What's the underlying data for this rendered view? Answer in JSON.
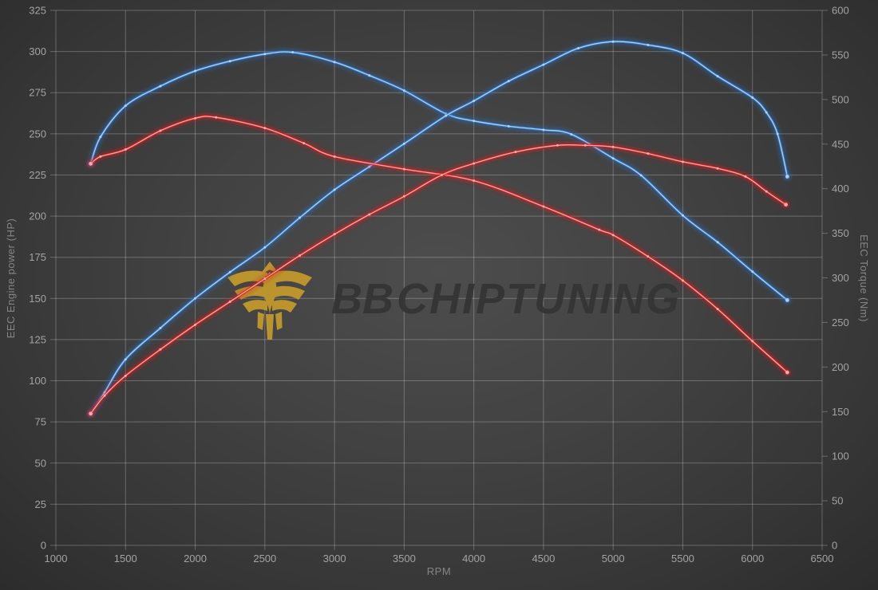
{
  "watermark": {
    "brand_bold": "BB",
    "brand_rest": "CHIPTUNING",
    "emblem": "bb-chiptuning-phoenix-emblem",
    "emblem_color": "#c69b2b",
    "text_color": "#343434"
  },
  "colors": {
    "background_center": "#4d4d4d",
    "background_edge": "#2c2c2c",
    "grid": "rgba(255,255,255,0.25)",
    "tick_text": "#a3a3a3",
    "axis_title_text": "#868686",
    "power_tuned_blue": "#2f76c8",
    "power_tuned_blue_core": "#b4d7f6",
    "power_original_red": "#d42020",
    "power_original_red_core": "#ffb0b0"
  },
  "chart_data": {
    "type": "line",
    "grid": true,
    "legend": "none",
    "x_axis": {
      "label": "RPM",
      "min": 1000,
      "max": 6500,
      "ticks": [
        1000,
        1500,
        2000,
        2500,
        3000,
        3500,
        4000,
        4500,
        5000,
        5500,
        6000,
        6500
      ]
    },
    "y_left": {
      "label": "EEC Engine power (HP)",
      "min": 0,
      "max": 325,
      "ticks": [
        0,
        25,
        50,
        75,
        100,
        125,
        150,
        175,
        200,
        225,
        250,
        275,
        300,
        325
      ]
    },
    "y_right": {
      "label": "EEC Torque (Nm)",
      "min": 0,
      "max": 600,
      "ticks": [
        0,
        50,
        100,
        150,
        200,
        250,
        300,
        350,
        400,
        450,
        500,
        550,
        600
      ]
    },
    "series": [
      {
        "name": "torque-blue",
        "unit": "Nm",
        "axis": "right",
        "color": "#2f76c8",
        "core": "#b4d7f6",
        "x": [
          1250,
          1320,
          1500,
          1750,
          2000,
          2250,
          2500,
          2700,
          3000,
          3250,
          3500,
          3800,
          4000,
          4250,
          4500,
          4700,
          5000,
          5200,
          5500,
          5750,
          6000,
          6250
        ],
        "y": [
          428,
          458,
          493,
          515,
          532,
          543,
          551,
          553,
          542,
          527,
          510,
          484,
          476,
          470,
          466,
          461,
          434,
          415,
          370,
          340,
          307,
          275
        ]
      },
      {
        "name": "power-blue",
        "unit": "HP",
        "axis": "left",
        "color": "#2f76c8",
        "core": "#b4d7f6",
        "x": [
          1250,
          1350,
          1500,
          1750,
          2000,
          2250,
          2500,
          2750,
          3000,
          3250,
          3500,
          3800,
          4000,
          4250,
          4500,
          4750,
          5000,
          5250,
          5500,
          5750,
          6000,
          6100,
          6180,
          6250
        ],
        "y": [
          80,
          93,
          113,
          132,
          150,
          166,
          181,
          199,
          216,
          230,
          244,
          261,
          270,
          282,
          292,
          302,
          306,
          304,
          299,
          285,
          272,
          263,
          250,
          224
        ]
      },
      {
        "name": "torque-red",
        "unit": "Nm",
        "axis": "right",
        "color": "#d42020",
        "core": "#ffb0b0",
        "x": [
          1250,
          1320,
          1500,
          1750,
          2000,
          2150,
          2500,
          2780,
          3000,
          3500,
          4000,
          4500,
          4900,
          5000,
          5250,
          5500,
          5750,
          6000,
          6250
        ],
        "y": [
          428,
          436,
          444,
          465,
          479,
          480,
          468,
          451,
          436,
          422,
          409,
          380,
          354,
          348,
          324,
          297,
          265,
          229,
          194
        ]
      },
      {
        "name": "power-red",
        "unit": "HP",
        "axis": "left",
        "color": "#d42020",
        "core": "#ffb0b0",
        "x": [
          1250,
          1350,
          1500,
          1750,
          2000,
          2250,
          2500,
          2750,
          3000,
          3250,
          3500,
          3770,
          4000,
          4300,
          4600,
          4800,
          5000,
          5250,
          5500,
          5750,
          5950,
          6100,
          6240
        ],
        "y": [
          80,
          91,
          103,
          119,
          134,
          148,
          162,
          176,
          189,
          201,
          212,
          225,
          232,
          239,
          243,
          243,
          242,
          238,
          233,
          229,
          224,
          215,
          207
        ]
      }
    ],
    "peaks": {
      "power_blue_max_hp": 306,
      "power_red_max_hp": 243,
      "torque_blue_max_nm": 553,
      "torque_red_max_nm": 480
    }
  }
}
